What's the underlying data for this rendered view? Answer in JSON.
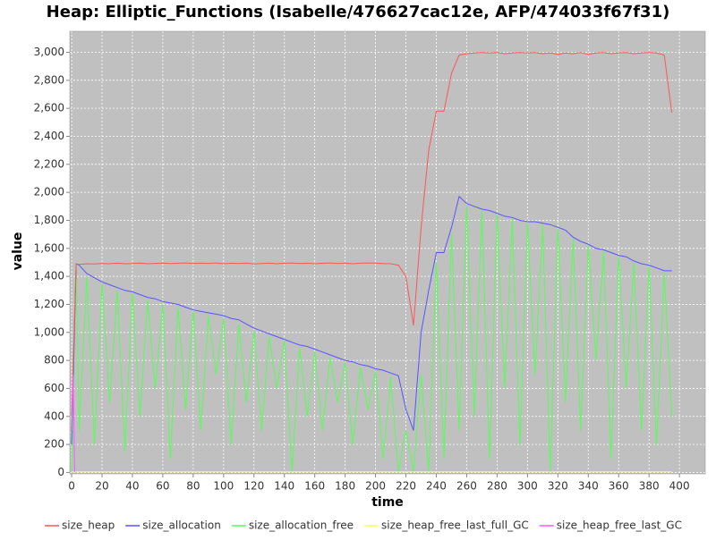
{
  "chart_data": {
    "type": "line",
    "title": "Heap: Elliptic_Functions (Isabelle/476627cac12e, AFP/474033f67f31)",
    "x_label": "time",
    "y_label": "value",
    "xlim": [
      -1.2,
      417
    ],
    "ylim": [
      -10,
      3150
    ],
    "xticks": [
      0,
      20,
      40,
      60,
      80,
      100,
      120,
      140,
      160,
      180,
      200,
      220,
      240,
      260,
      280,
      300,
      320,
      340,
      360,
      380,
      400
    ],
    "yticks": [
      0,
      200,
      400,
      600,
      800,
      {
        "value": 1000,
        "label": "1,000"
      },
      {
        "value": 1200,
        "label": "1,200"
      },
      {
        "value": 1400,
        "label": "1,400"
      },
      {
        "value": 1600,
        "label": "1,600"
      },
      {
        "value": 1800,
        "label": "1,800"
      },
      {
        "value": 2000,
        "label": "2,000"
      },
      {
        "value": 2200,
        "label": "2,200"
      },
      {
        "value": 2400,
        "label": "2,400"
      },
      {
        "value": 2600,
        "label": "2,600"
      },
      {
        "value": 2800,
        "label": "2,800"
      },
      {
        "value": 3000,
        "label": "3,000"
      }
    ],
    "grid": true,
    "legend": "bottom",
    "background": "#c0c0c0",
    "x": [
      0,
      3,
      5,
      10,
      15,
      20,
      25,
      30,
      35,
      40,
      45,
      50,
      55,
      60,
      65,
      70,
      75,
      80,
      85,
      90,
      95,
      100,
      105,
      110,
      115,
      120,
      125,
      130,
      135,
      140,
      145,
      150,
      155,
      160,
      165,
      170,
      175,
      180,
      185,
      190,
      195,
      200,
      205,
      210,
      215,
      220,
      225,
      230,
      235,
      240,
      245,
      250,
      255,
      260,
      265,
      270,
      275,
      280,
      285,
      290,
      295,
      300,
      305,
      310,
      315,
      320,
      325,
      330,
      335,
      340,
      345,
      350,
      355,
      360,
      365,
      370,
      375,
      380,
      385,
      390,
      395
    ],
    "series": [
      {
        "name": "size_heap",
        "color": "#ff5555",
        "values": [
          400,
          1490,
          1485,
          1490,
          1488,
          1492,
          1490,
          1495,
          1490,
          1492,
          1495,
          1490,
          1493,
          1495,
          1492,
          1494,
          1496,
          1492,
          1495,
          1493,
          1496,
          1490,
          1494,
          1492,
          1495,
          1488,
          1492,
          1495,
          1490,
          1494,
          1496,
          1492,
          1495,
          1490,
          1494,
          1496,
          1492,
          1495,
          1490,
          1494,
          1496,
          1495,
          1492,
          1490,
          1480,
          1400,
          1050,
          1750,
          2300,
          2580,
          2580,
          2850,
          2980,
          2990,
          2995,
          2998,
          2995,
          2998,
          2990,
          2995,
          2998,
          2995,
          2998,
          2990,
          2995,
          2985,
          2995,
          2990,
          2998,
          2985,
          2995,
          2998,
          2990,
          2995,
          2998,
          2990,
          2995,
          2998,
          2995,
          2980,
          2570
        ]
      },
      {
        "name": "size_allocation",
        "color": "#5555ff",
        "values": [
          200,
          1490,
          1480,
          1420,
          1390,
          1360,
          1340,
          1320,
          1300,
          1290,
          1270,
          1250,
          1240,
          1220,
          1210,
          1200,
          1180,
          1160,
          1150,
          1140,
          1130,
          1120,
          1100,
          1090,
          1060,
          1030,
          1010,
          990,
          970,
          950,
          930,
          910,
          900,
          880,
          860,
          840,
          820,
          800,
          790,
          770,
          760,
          740,
          730,
          710,
          690,
          450,
          300,
          1000,
          1300,
          1570,
          1570,
          1750,
          1970,
          1920,
          1900,
          1880,
          1870,
          1850,
          1830,
          1820,
          1800,
          1790,
          1790,
          1780,
          1770,
          1750,
          1730,
          1680,
          1650,
          1630,
          1600,
          1590,
          1570,
          1550,
          1540,
          1510,
          1490,
          1480,
          1460,
          1440,
          1440
        ]
      },
      {
        "name": "size_allocation_free",
        "color": "#55ff55",
        "values": [
          0,
          1480,
          300,
          1400,
          200,
          1350,
          500,
          1300,
          150,
          1280,
          400,
          1230,
          600,
          1200,
          100,
          1180,
          450,
          1150,
          300,
          1120,
          700,
          1100,
          200,
          1060,
          500,
          1010,
          300,
          970,
          600,
          940,
          0,
          890,
          400,
          860,
          300,
          820,
          500,
          780,
          200,
          750,
          450,
          720,
          100,
          680,
          0,
          300,
          0,
          700,
          0,
          1500,
          100,
          1700,
          300,
          1900,
          400,
          1870,
          100,
          1840,
          600,
          1810,
          200,
          1780,
          700,
          1770,
          0,
          1740,
          500,
          1670,
          300,
          1620,
          800,
          1580,
          100,
          1540,
          600,
          1500,
          300,
          1470,
          200,
          1430,
          400
        ]
      },
      {
        "name": "size_heap_free_last_full_GC",
        "color": "#ffff55",
        "x": [
          0,
          395
        ],
        "values": [
          5,
          5
        ]
      },
      {
        "name": "size_heap_free_last_GC",
        "color": "#ff55ff",
        "x": [
          0,
          1,
          2
        ],
        "values": [
          300,
          700,
          0
        ]
      }
    ]
  }
}
